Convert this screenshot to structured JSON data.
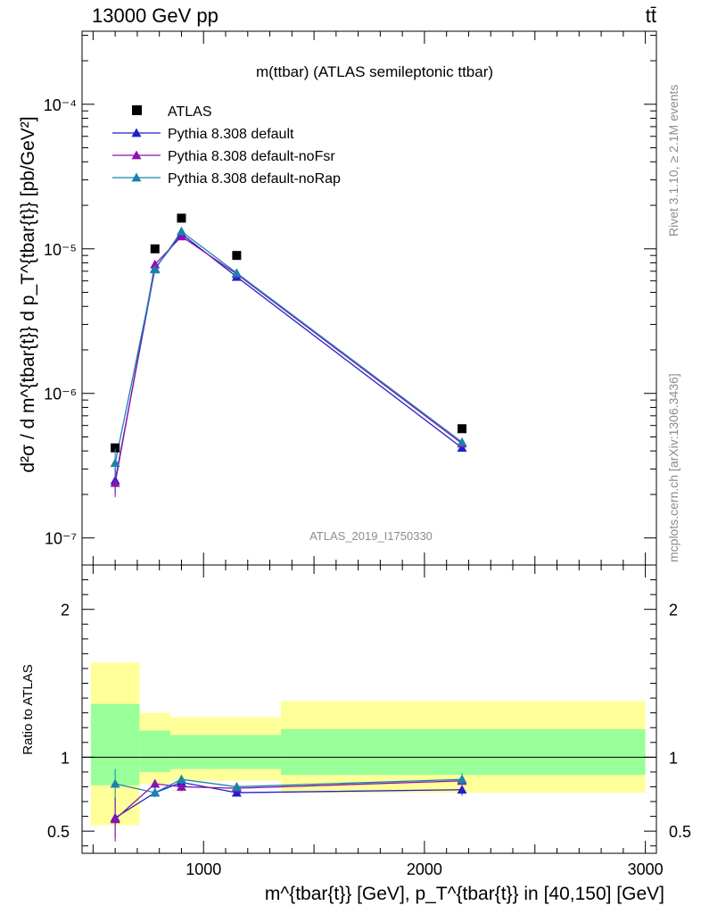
{
  "header": {
    "left": "13000 GeV pp",
    "right": "tt̄"
  },
  "side_labels": {
    "rivet": "Rivet 3.1.10, ≥ 2.1M events",
    "mcplots": "mcplots.cern.ch [arXiv:1306.3436]"
  },
  "chart_data": [
    {
      "type": "scatter",
      "panel": "main",
      "title": "m(ttbar) (ATLAS semileptonic ttbar)",
      "watermark": "ATLAS_2019_I1750330",
      "ylabel": "d²σ / d m^{tbar{t}} d p_T^{tbar{t}} [pb/GeV²]",
      "yscale": "log",
      "xlim": [
        450,
        3050
      ],
      "ylim": [
        6.5e-08,
        0.00032
      ],
      "ytick_labels": [
        "10⁻⁷",
        "10⁻⁶",
        "10⁻⁵",
        "10⁻⁴"
      ],
      "legend_position": "top-left",
      "series": [
        {
          "name": "ATLAS",
          "color": "#000000",
          "marker": "square",
          "x": [
            600,
            780,
            900,
            1150,
            2170
          ],
          "y": [
            4.2e-07,
            1e-05,
            1.63e-05,
            9e-06,
            5.7e-07
          ]
        },
        {
          "name": "Pythia 8.308 default",
          "color": "#1f1fcc",
          "marker": "triangle",
          "x": [
            600,
            780,
            900,
            1150,
            2170
          ],
          "y": [
            2.5e-07,
            7.3e-06,
            1.27e-05,
            6.4e-06,
            4.2e-07
          ]
        },
        {
          "name": "Pythia 8.308 default-noFsr",
          "color": "#8b13ad",
          "marker": "triangle",
          "x": [
            600,
            780,
            900,
            1150,
            2170
          ],
          "y": [
            2.4e-07,
            7.8e-06,
            1.22e-05,
            6.7e-06,
            4.5e-07
          ]
        },
        {
          "name": "Pythia 8.308 default-noRap",
          "color": "#1a82ad",
          "marker": "triangle",
          "x": [
            600,
            780,
            900,
            1150,
            2170
          ],
          "y": [
            3.3e-07,
            7.2e-06,
            1.32e-05,
            6.8e-06,
            4.6e-07
          ]
        }
      ]
    },
    {
      "type": "scatter",
      "panel": "ratio",
      "ylabel": "Ratio to ATLAS",
      "xlabel": "m^{tbar{t}} [GeV], p_T^{tbar{t}} in [40,150] [GeV]",
      "xlim": [
        450,
        3050
      ],
      "ylim": [
        0.35,
        2.3
      ],
      "xticks": [
        1000,
        2000,
        3000
      ],
      "yticks": [
        0.5,
        1,
        2
      ],
      "bands": [
        {
          "x": [
            490,
            710
          ],
          "yellow": [
            0.54,
            1.64
          ],
          "green": [
            0.81,
            1.36
          ]
        },
        {
          "x": [
            710,
            850
          ],
          "yellow": [
            0.82,
            1.3
          ],
          "green": [
            0.9,
            1.18
          ]
        },
        {
          "x": [
            850,
            1350
          ],
          "yellow": [
            0.84,
            1.27
          ],
          "green": [
            0.92,
            1.15
          ]
        },
        {
          "x": [
            1350,
            3000
          ],
          "yellow": [
            0.76,
            1.38
          ],
          "green": [
            0.88,
            1.19
          ]
        }
      ],
      "series": [
        {
          "name": "Pythia 8.308 default",
          "color": "#1f1fcc",
          "x": [
            600,
            780,
            900,
            1150,
            2170
          ],
          "y": [
            0.59,
            0.76,
            0.83,
            0.76,
            0.78
          ],
          "err": [
            0.14,
            0.03,
            0.03,
            0.02,
            0.04
          ]
        },
        {
          "name": "Pythia 8.308 default-noFsr",
          "color": "#8b13ad",
          "x": [
            600,
            780,
            900,
            1150,
            2170
          ],
          "y": [
            0.58,
            0.82,
            0.8,
            0.79,
            0.84
          ],
          "err": [
            0.15,
            0.03,
            0.03,
            0.02,
            0.04
          ]
        },
        {
          "name": "Pythia 8.308 default-noRap",
          "color": "#1a82ad",
          "x": [
            600,
            780,
            900,
            1150,
            2170
          ],
          "y": [
            0.82,
            0.76,
            0.85,
            0.8,
            0.85
          ],
          "err": [
            0.1,
            0.03,
            0.03,
            0.02,
            0.04
          ]
        }
      ]
    }
  ]
}
